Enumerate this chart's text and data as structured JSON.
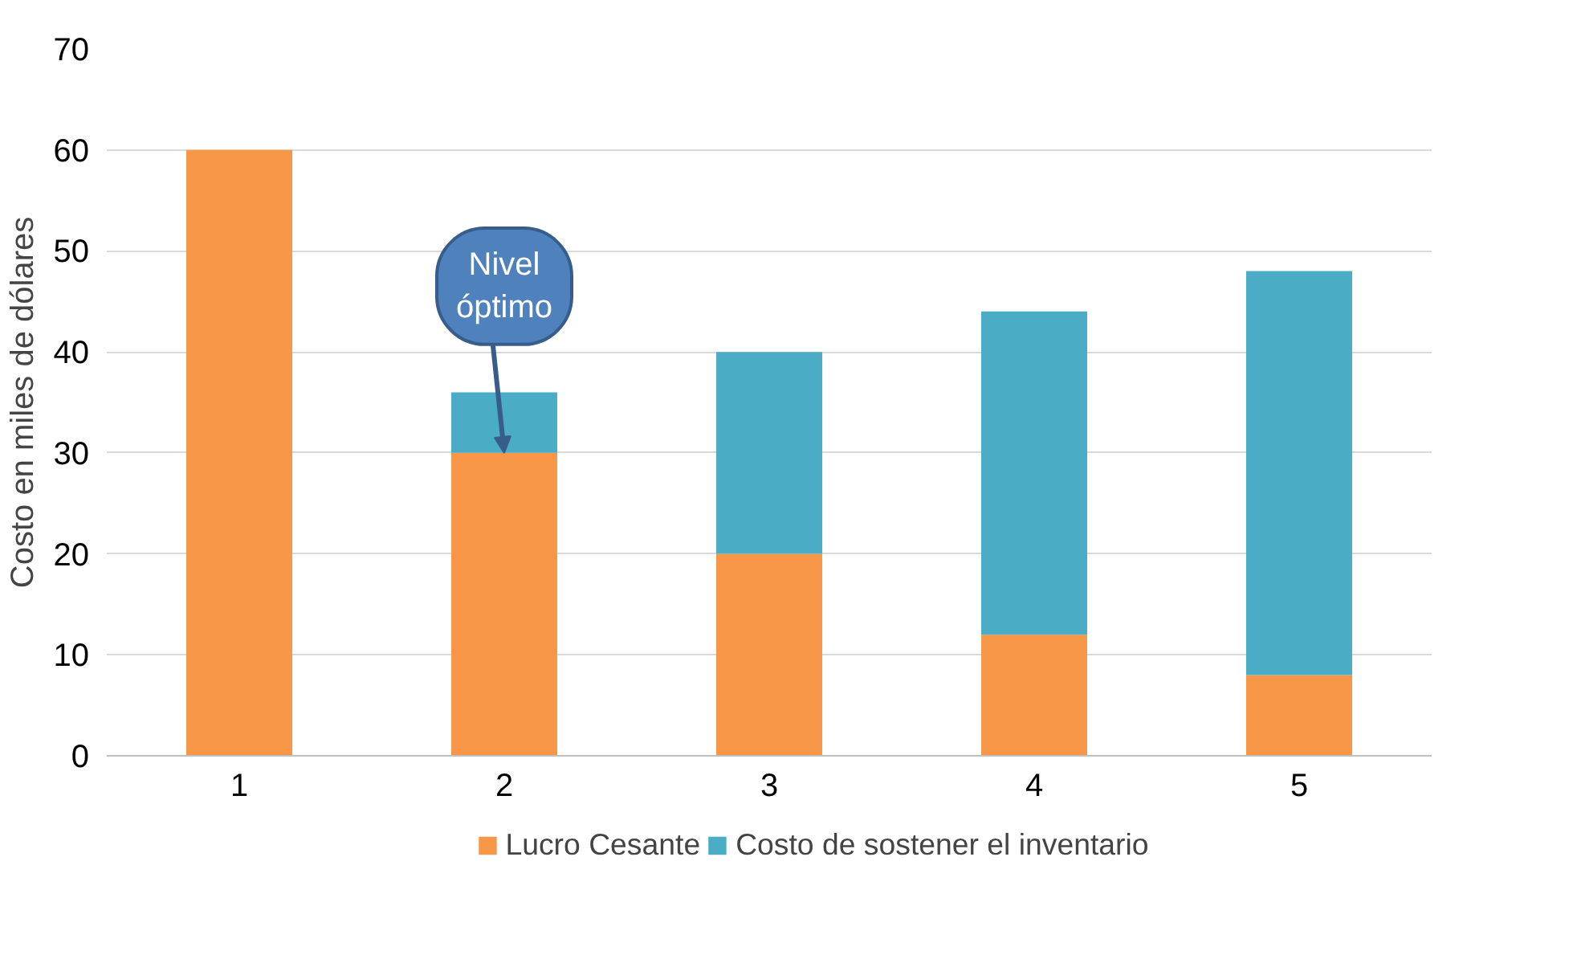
{
  "chart_data": {
    "type": "bar",
    "stacked": true,
    "ylabel": "Costo en miles de dólares",
    "categories": [
      "1",
      "2",
      "3",
      "4",
      "5"
    ],
    "series": [
      {
        "name": "Lucro Cesante",
        "color": "#f79646",
        "values": [
          60,
          30,
          20,
          12,
          8
        ]
      },
      {
        "name": "Costo de sostener el inventario",
        "color": "#4bacc6",
        "values": [
          null,
          6,
          20,
          32,
          40
        ]
      }
    ],
    "ylim": [
      0,
      70
    ],
    "yticks": [
      0,
      10,
      20,
      30,
      40,
      50,
      60,
      70
    ],
    "grid": "y",
    "legend": "bottom",
    "annotations": [
      {
        "text": "Nivel óptimo",
        "x": "2",
        "y": 30
      }
    ]
  }
}
